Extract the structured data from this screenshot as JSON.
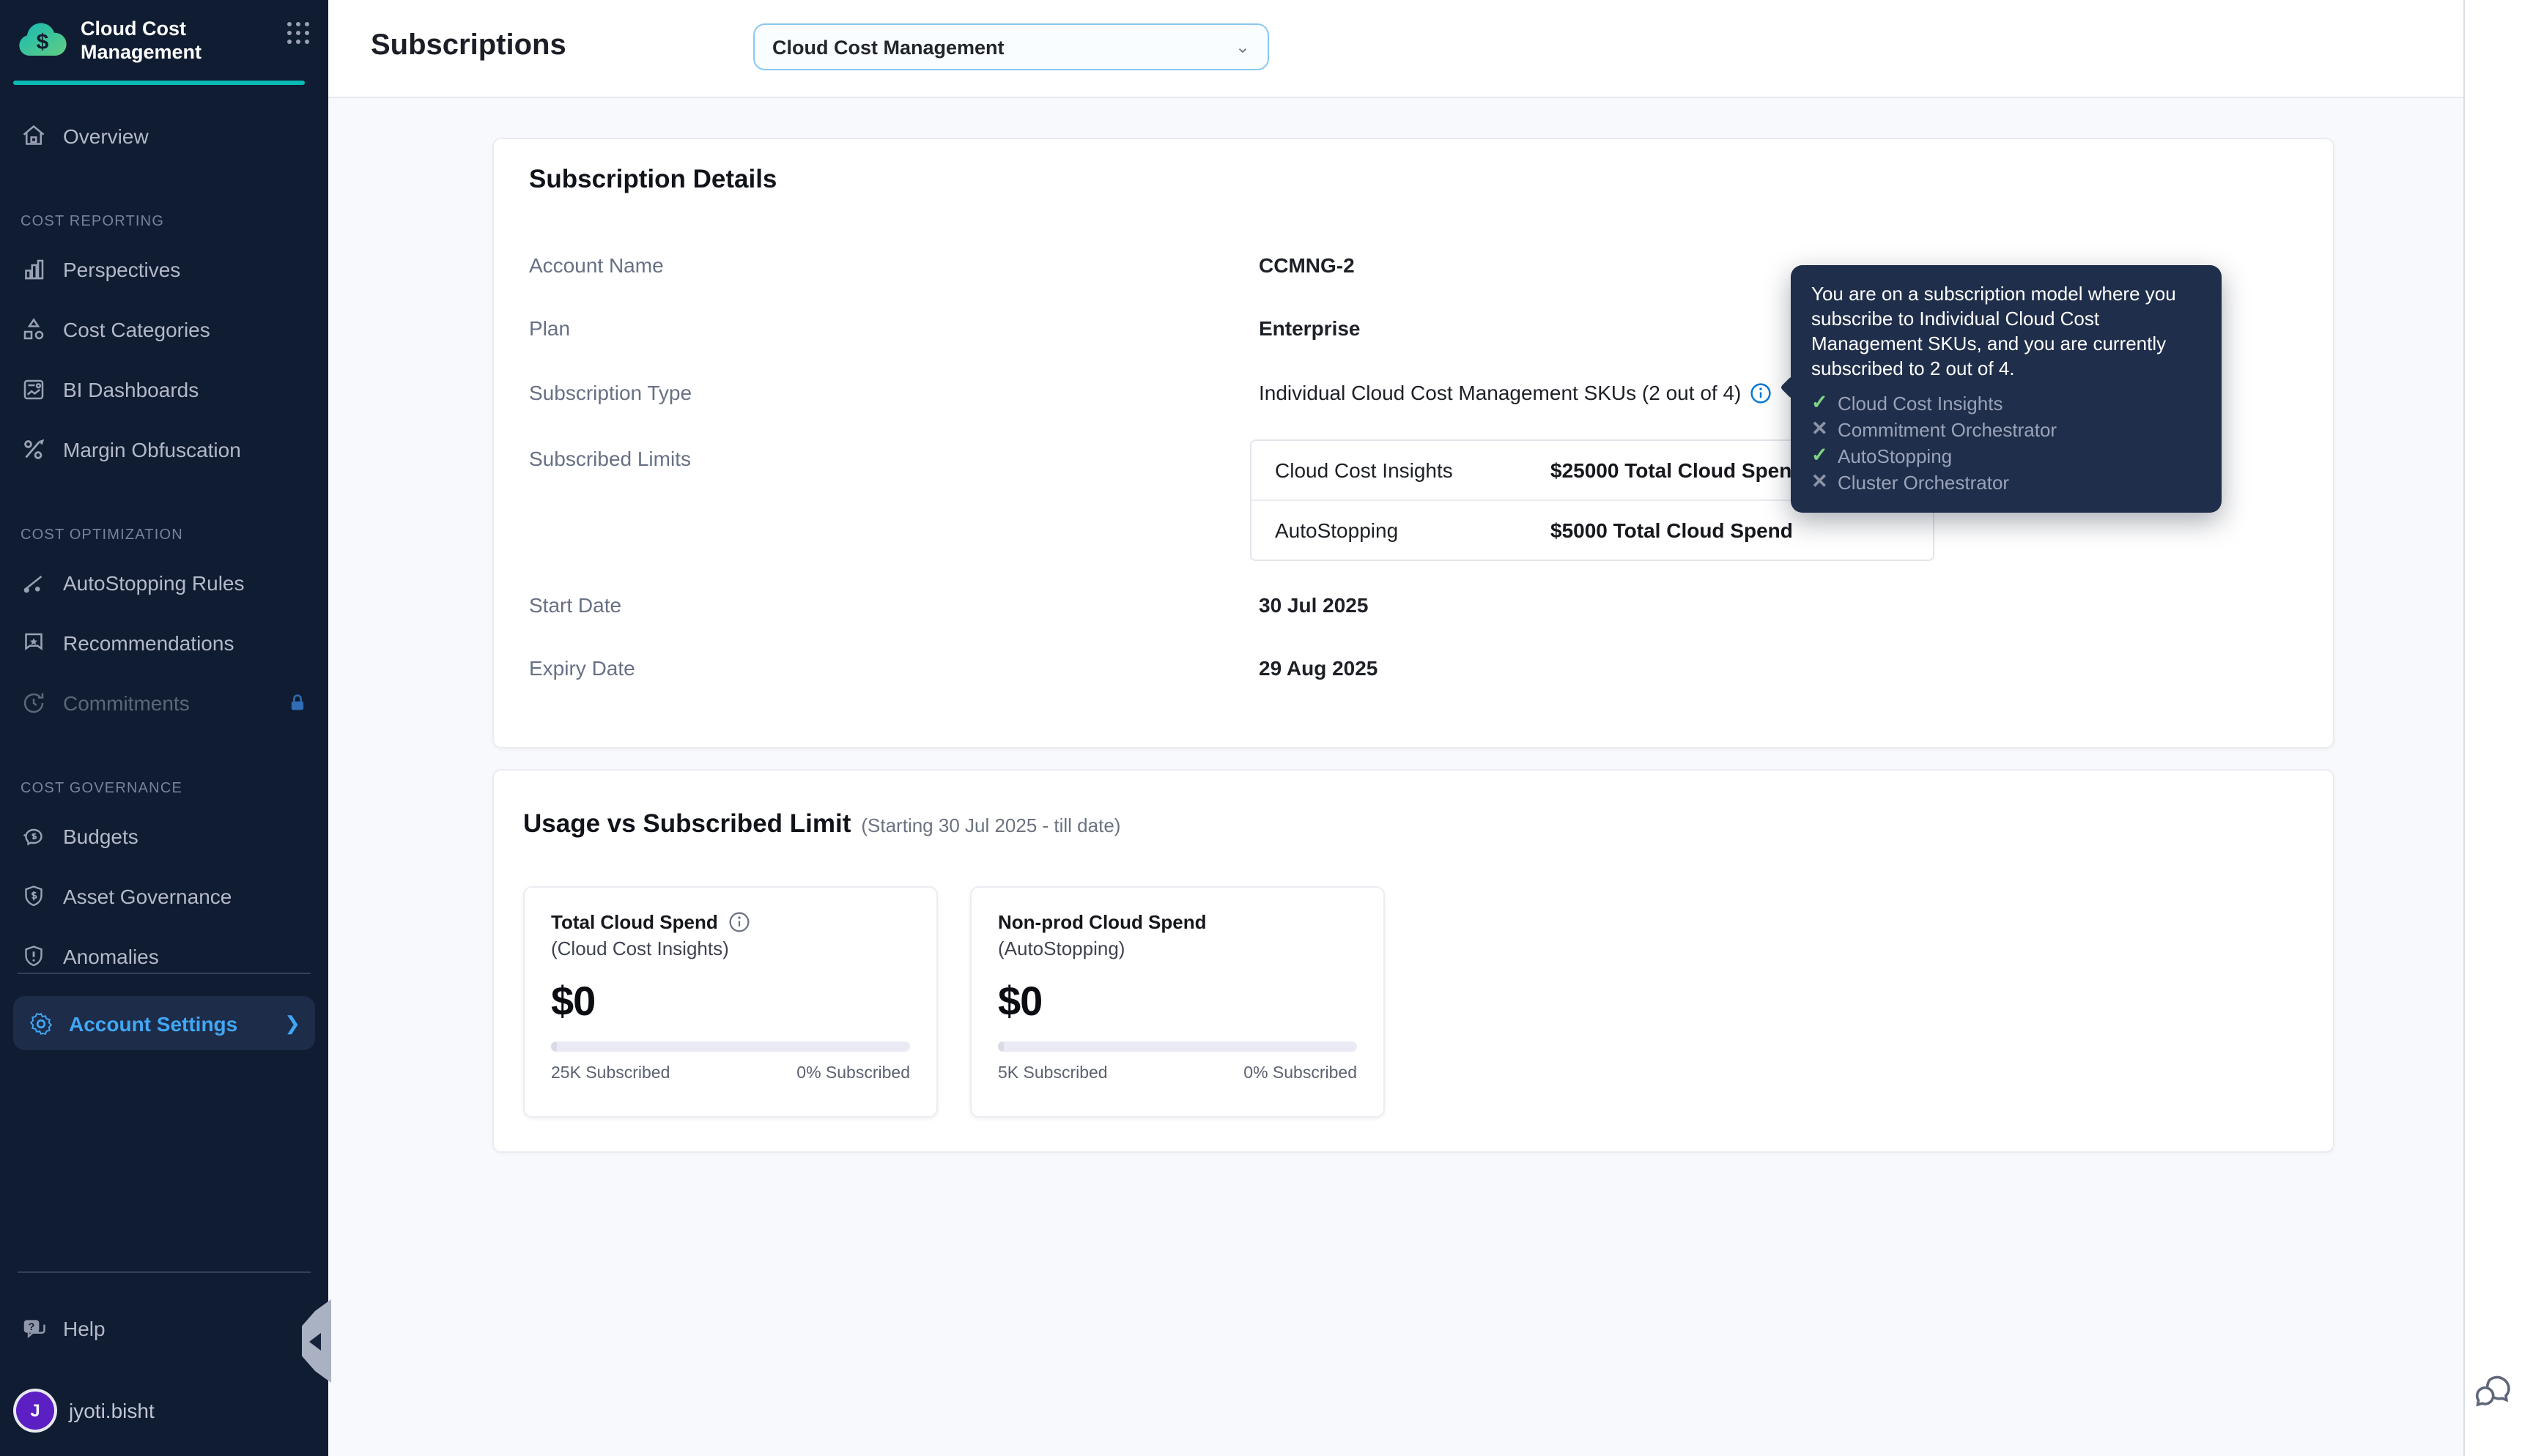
{
  "colors": {
    "sidebar_bg": "#101c31",
    "accent_teal": "#0bbab3",
    "active_blue": "#41a7f5",
    "avatar_purple": "#5c1fc4",
    "tooltip_bg": "#1f2e4a",
    "check_green": "#7ed384",
    "info_blue": "#0278d5",
    "content_bg": "#f8f9fc"
  },
  "sidebar": {
    "title": "Cloud Cost Management",
    "sections": [
      {
        "header": "",
        "items": [
          {
            "label": "Overview",
            "icon": "home-icon"
          }
        ]
      },
      {
        "header": "COST REPORTING",
        "items": [
          {
            "label": "Perspectives",
            "icon": "bar-chart-icon"
          },
          {
            "label": "Cost Categories",
            "icon": "shapes-icon"
          },
          {
            "label": "BI Dashboards",
            "icon": "dashboard-icon"
          },
          {
            "label": "Margin Obfuscation",
            "icon": "percent-icon"
          }
        ]
      },
      {
        "header": "COST OPTIMIZATION",
        "items": [
          {
            "label": "AutoStopping Rules",
            "icon": "autostopping-icon"
          },
          {
            "label": "Recommendations",
            "icon": "recommendation-icon"
          },
          {
            "label": "Commitments",
            "icon": "commitments-icon",
            "locked": true
          }
        ]
      },
      {
        "header": "COST GOVERNANCE",
        "items": [
          {
            "label": "Budgets",
            "icon": "piggy-bank-icon"
          },
          {
            "label": "Asset Governance",
            "icon": "shield-dollar-icon"
          },
          {
            "label": "Anomalies",
            "icon": "shield-alert-icon"
          }
        ]
      }
    ],
    "account_settings": {
      "label": "Account Settings",
      "icon": "gear-icon"
    },
    "help": {
      "label": "Help",
      "icon": "help-chat-icon"
    },
    "user": {
      "name": "jyoti.bisht",
      "initial": "J"
    }
  },
  "header": {
    "title": "Subscriptions",
    "module_select": {
      "value": "Cloud Cost Management",
      "icon": "chevron-down-icon"
    }
  },
  "details": {
    "title": "Subscription Details",
    "account_name": {
      "label": "Account Name",
      "value": "CCMNG-2"
    },
    "plan": {
      "label": "Plan",
      "value": "Enterprise"
    },
    "subscription_type": {
      "label": "Subscription Type",
      "value": "Individual Cloud Cost Management SKUs (2 out of 4)"
    },
    "subscribed_limits": {
      "label": "Subscribed Limits",
      "rows": [
        {
          "sku": "Cloud Cost Insights",
          "limit": "$25000 Total Cloud Spend"
        },
        {
          "sku": "AutoStopping",
          "limit": "$5000 Total Cloud Spend"
        }
      ]
    },
    "start_date": {
      "label": "Start Date",
      "value": "30 Jul 2025"
    },
    "expiry_date": {
      "label": "Expiry Date",
      "value": "29 Aug 2025"
    }
  },
  "tooltip": {
    "text": "You are on a subscription model where you subscribe to Individual Cloud Cost Management SKUs, and you are currently subscribed to 2 out of 4.",
    "items": [
      {
        "name": "Cloud Cost Insights",
        "subscribed": true,
        "mark": "✓"
      },
      {
        "name": "Commitment Orchestrator",
        "subscribed": false,
        "mark": "✕"
      },
      {
        "name": "AutoStopping",
        "subscribed": true,
        "mark": "✓"
      },
      {
        "name": "Cluster Orchestrator",
        "subscribed": false,
        "mark": "✕"
      }
    ]
  },
  "usage": {
    "title": "Usage vs Subscribed Limit",
    "subtitle": "(Starting 30 Jul 2025 - till date)",
    "cards": [
      {
        "title": "Total Cloud Spend",
        "subtitle": "(Cloud Cost Insights)",
        "amount": "$0",
        "subscribed_label": "25K Subscribed",
        "percent_label": "0% Subscribed",
        "progress_pct": 0
      },
      {
        "title": "Non-prod Cloud Spend",
        "subtitle": "(AutoStopping)",
        "amount": "$0",
        "subscribed_label": "5K Subscribed",
        "percent_label": "0% Subscribed",
        "progress_pct": 0
      }
    ]
  }
}
